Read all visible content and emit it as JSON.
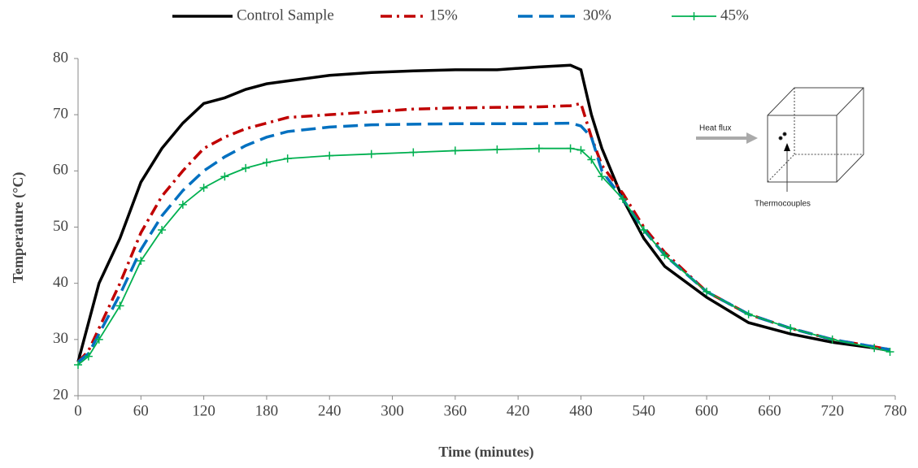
{
  "chart_data": {
    "type": "line",
    "x_label": "Time (minutes)",
    "y_label": "Temperature (°C)",
    "x": [
      0,
      10,
      20,
      40,
      60,
      80,
      100,
      120,
      140,
      160,
      180,
      200,
      240,
      280,
      320,
      360,
      400,
      440,
      470,
      480,
      490,
      500,
      520,
      540,
      560,
      600,
      640,
      680,
      720,
      760,
      775
    ],
    "series": [
      {
        "name": "Control Sample",
        "color": "#000000",
        "line_style": "solid",
        "values": [
          26,
          33,
          40,
          48,
          58,
          64,
          68.5,
          72,
          73,
          74.5,
          75.5,
          76,
          77,
          77.5,
          77.8,
          78,
          78,
          78.5,
          78.8,
          78,
          70,
          64,
          55,
          48,
          43,
          37.5,
          33,
          31,
          29.5,
          28.5,
          28
        ]
      },
      {
        "name": "15%",
        "color": "#c00000",
        "line_style": "dash-dot",
        "values": [
          26,
          28,
          32,
          40,
          49,
          55.5,
          60,
          64,
          66,
          67.5,
          68.5,
          69.5,
          70,
          70.5,
          71,
          71.2,
          71.3,
          71.4,
          71.6,
          72,
          66,
          61,
          56,
          50,
          45.5,
          38.5,
          34.5,
          32,
          30,
          28.7,
          28.2
        ]
      },
      {
        "name": "30%",
        "color": "#0070c0",
        "line_style": "dash",
        "values": [
          26,
          27.5,
          31,
          38,
          46,
          52,
          56.5,
          60,
          62.5,
          64.5,
          66,
          67,
          67.8,
          68.2,
          68.3,
          68.4,
          68.4,
          68.4,
          68.5,
          68,
          66,
          60,
          55,
          49.5,
          45,
          38.5,
          34.5,
          32,
          30,
          28.7,
          28.2
        ]
      },
      {
        "name": "45%",
        "color": "#00b050",
        "line_style": "solid-plus",
        "values": [
          25.5,
          27,
          30,
          36,
          44,
          49.5,
          54,
          57,
          59,
          60.5,
          61.5,
          62.2,
          62.7,
          63,
          63.3,
          63.6,
          63.8,
          64,
          64,
          63.7,
          62,
          59,
          55,
          49.5,
          45,
          38.5,
          34.5,
          32,
          30,
          28.5,
          27.8
        ]
      }
    ],
    "xlim": [
      0,
      780
    ],
    "xticks": [
      0,
      60,
      120,
      180,
      240,
      300,
      360,
      420,
      480,
      540,
      600,
      660,
      720,
      780
    ],
    "ylim": [
      20,
      80
    ],
    "yticks": [
      20,
      30,
      40,
      50,
      60,
      70,
      80
    ],
    "legend": "top",
    "annotations": [
      "Heat flux",
      "Thermocouples"
    ]
  }
}
